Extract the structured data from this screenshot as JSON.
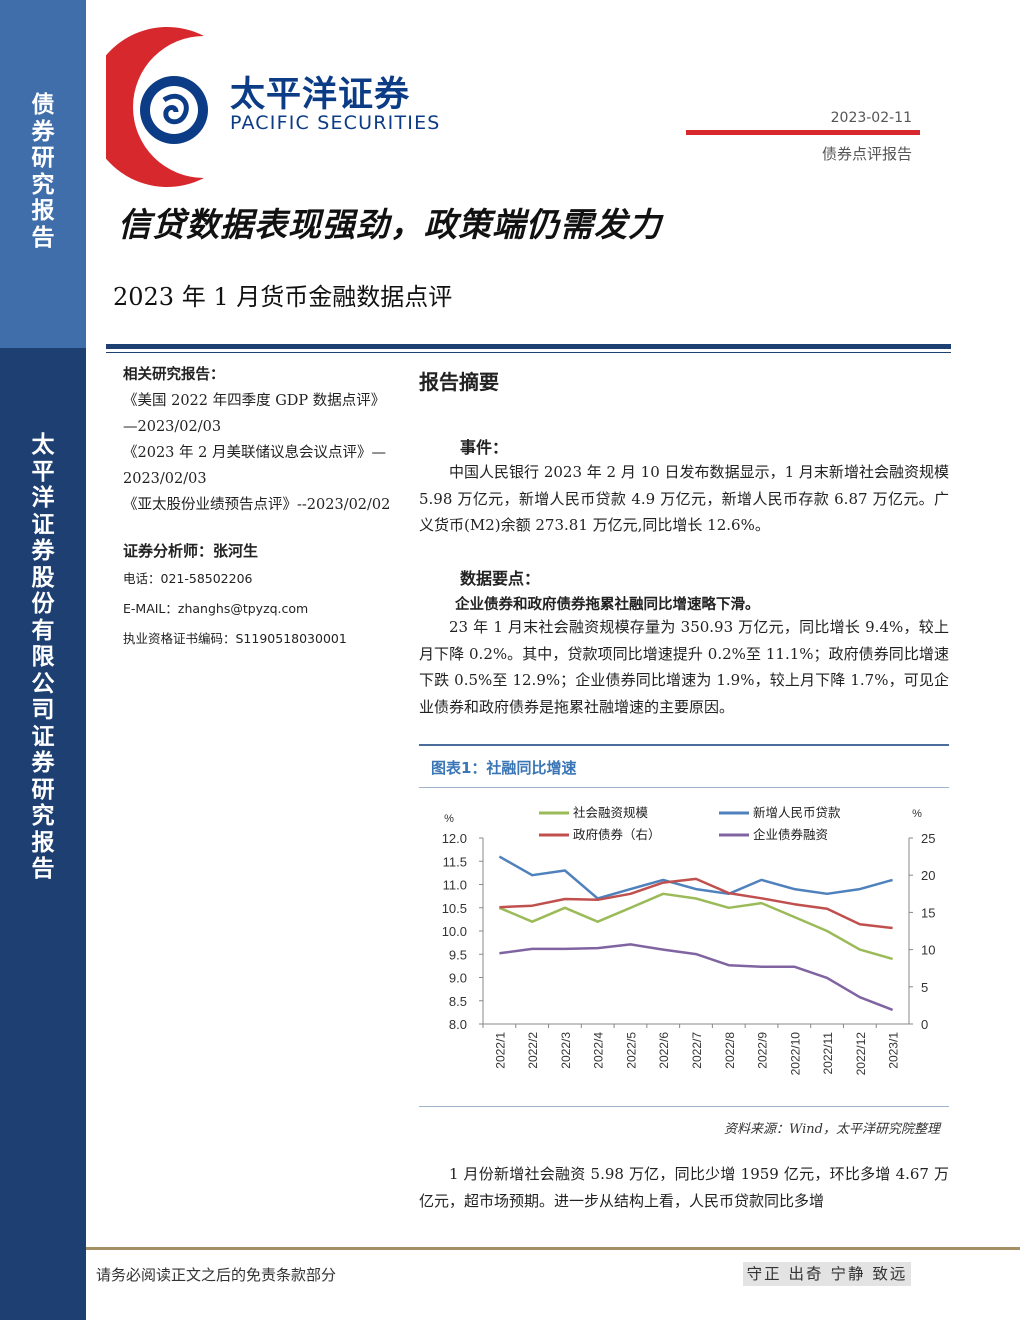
{
  "sidebar": {
    "top_text": "债券研究报告",
    "bottom_text": "太平洋证券股份有限公司证券研究报告"
  },
  "header": {
    "brand_cn": "太平洋证券",
    "brand_en": "PACIFIC SECURITIES",
    "date": "2023-02-11",
    "doc_type": "债券点评报告",
    "accent_color": "#d7282e",
    "brand_color": "#0c3c86"
  },
  "title": {
    "main": "信贷数据表现强劲，政策端仍需发力",
    "sub": "2023 年 1 月货币金融数据点评"
  },
  "related": {
    "heading": "相关研究报告：",
    "items": [
      "《美国 2022 年四季度 GDP 数据点评》—2023/02/03",
      "《2023 年 2 月美联储议息会议点评》—2023/02/03",
      "《亚太股份业绩预告点评》--2023/02/02"
    ]
  },
  "analyst": {
    "label": "证券分析师：张河生",
    "phone": "电话：021-58502206",
    "email": "E-MAIL：zhanghs@tpyzq.com",
    "license": "执业资格证书编码：S1190518030001"
  },
  "abstract": {
    "title": "报告摘要",
    "event_title": "事件：",
    "event_text": "中国人民银行 2023 年 2 月 10 日发布数据显示，1 月末新增社会融资规模 5.98 万亿元，新增人民币贷款 4.9 万亿元，新增人民币存款 6.87 万亿元。广义货币(M2)余额 273.81 万亿元,同比增长 12.6%。",
    "key_points_title": "数据要点：",
    "key_bold": "企业债券和政府债券拖累社融同比增速略下滑。",
    "key_text": "23 年 1 月末社会融资规模存量为 350.93 万亿元，同比增长 9.4%，较上月下降 0.2%。其中，贷款项同比增速提升 0.2%至 11.1%；政府债券同比增速下跌 0.5%至 12.9%；企业债券同比增速为 1.9%，较上月下降 1.7%，可见企业债券和政府债券是拖累社融增速的主要原因。",
    "after_chart_text": "1 月份新增社会融资 5.98 万亿，同比少增 1959 亿元，环比多增 4.67 万亿元，超市场预期。进一步从结构上看，人民币贷款同比多增"
  },
  "chart": {
    "caption": "图表1：社融同比增速",
    "source": "资料来源：Wind，太平洋研究院整理"
  },
  "chart_data": {
    "type": "line",
    "title": "",
    "ylabel_left": "%",
    "ylabel_right": "%",
    "ylim_left": [
      8.0,
      12.0
    ],
    "ylim_right": [
      0,
      25
    ],
    "yticks_left": [
      "12.0",
      "11.5",
      "11.0",
      "10.5",
      "10.0",
      "9.5",
      "9.0",
      "8.5",
      "8.0"
    ],
    "yticks_right": [
      "25",
      "20",
      "15",
      "10",
      "5",
      "0"
    ],
    "categories": [
      "2022/1",
      "2022/2",
      "2022/3",
      "2022/4",
      "2022/5",
      "2022/6",
      "2022/7",
      "2022/8",
      "2022/9",
      "2022/10",
      "2022/11",
      "2022/12",
      "2023/1"
    ],
    "legend_position": "top",
    "grid": false,
    "series": [
      {
        "name": "社会融资规模",
        "axis": "left",
        "color": "#9bbb59",
        "values": [
          10.5,
          10.2,
          10.5,
          10.2,
          10.5,
          10.8,
          10.7,
          10.5,
          10.6,
          10.3,
          10.0,
          9.6,
          9.4
        ]
      },
      {
        "name": "新增人民币贷款",
        "axis": "left",
        "color": "#4f81bd",
        "values": [
          11.6,
          11.2,
          11.3,
          10.7,
          10.9,
          11.1,
          10.9,
          10.8,
          11.1,
          10.9,
          10.8,
          10.9,
          11.1
        ]
      },
      {
        "name": "政府债券（右）",
        "axis": "right",
        "color": "#c0504d",
        "values": [
          15.7,
          15.9,
          16.8,
          16.7,
          17.5,
          19.0,
          19.5,
          17.6,
          16.9,
          16.1,
          15.5,
          13.4,
          12.9
        ]
      },
      {
        "name": "企业债券融资",
        "axis": "right",
        "color": "#8064a2",
        "values": [
          9.5,
          10.1,
          10.1,
          10.2,
          10.7,
          10.0,
          9.4,
          7.9,
          7.7,
          7.7,
          6.2,
          3.6,
          1.9
        ]
      }
    ]
  },
  "footer": {
    "disclaimer": "请务必阅读正文之后的免责条款部分",
    "motto": "守正 出奇 宁静 致远"
  }
}
